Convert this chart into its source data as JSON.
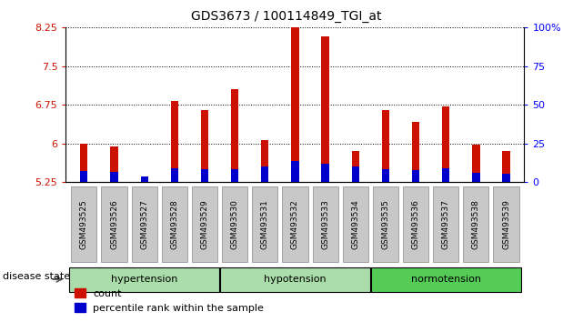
{
  "title": "GDS3673 / 100114849_TGI_at",
  "samples": [
    "GSM493525",
    "GSM493526",
    "GSM493527",
    "GSM493528",
    "GSM493529",
    "GSM493530",
    "GSM493531",
    "GSM493532",
    "GSM493533",
    "GSM493534",
    "GSM493535",
    "GSM493536",
    "GSM493537",
    "GSM493538",
    "GSM493539"
  ],
  "count_values": [
    6.0,
    5.93,
    5.27,
    6.82,
    6.65,
    7.05,
    6.07,
    8.65,
    8.08,
    5.85,
    6.65,
    6.42,
    6.72,
    5.97,
    5.85
  ],
  "percentile_values": [
    5.455,
    5.44,
    5.355,
    5.52,
    5.505,
    5.505,
    5.555,
    5.655,
    5.605,
    5.545,
    5.49,
    5.485,
    5.52,
    5.43,
    5.415
  ],
  "bar_bottom": 5.25,
  "bar_width": 0.25,
  "red_color": "#CC1100",
  "blue_color": "#0000CC",
  "ylim_left": [
    5.25,
    8.25
  ],
  "ylim_right": [
    0,
    100
  ],
  "yticks_left": [
    5.25,
    6.0,
    6.75,
    7.5,
    8.25
  ],
  "ytick_labels_left": [
    "5.25",
    "6",
    "6.75",
    "7.5",
    "8.25"
  ],
  "yticks_right": [
    0,
    25,
    50,
    75,
    100
  ],
  "ytick_labels_right": [
    "0",
    "25",
    "50",
    "75",
    "100%"
  ],
  "group_labels": [
    "hypertension",
    "hypotension",
    "normotension"
  ],
  "group_starts": [
    0,
    5,
    10
  ],
  "group_ends": [
    5,
    10,
    15
  ],
  "group_colors": [
    "#AADDAA",
    "#AADDAA",
    "#55CC55"
  ],
  "xtick_bg": "#C8C8C8",
  "disease_state_label": "disease state",
  "legend_count": "count",
  "legend_pct": "percentile rank within the sample",
  "fig_bg": "#FFFFFF"
}
